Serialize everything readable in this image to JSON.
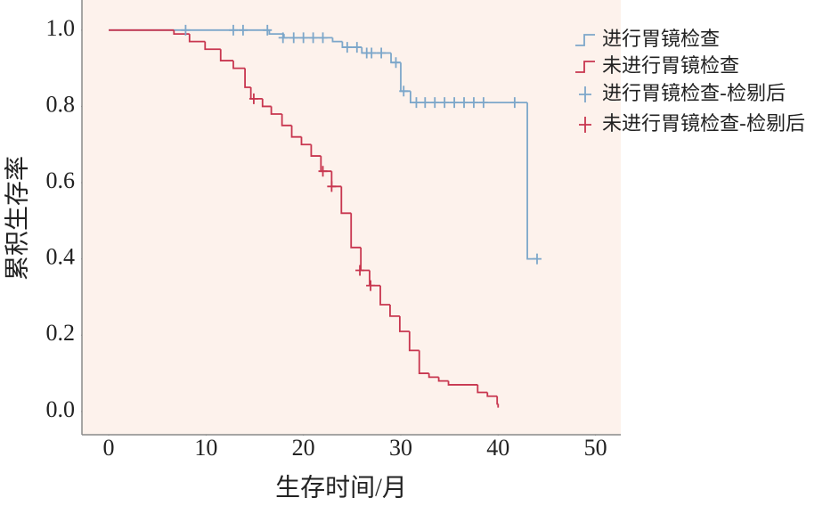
{
  "chart_data": {
    "type": "km",
    "x_label": "生存时间/月",
    "y_label": "累积生存率",
    "xlim": [
      -2.75,
      52.6
    ],
    "ylim": [
      -0.061,
      1.079
    ],
    "xticks": [
      0,
      10,
      20,
      30,
      40,
      50
    ],
    "yticks": [
      {
        "value": 0,
        "label": "0.0"
      },
      0.2,
      0.4,
      0.6,
      0.8,
      {
        "value": 1,
        "label": "1.0"
      }
    ],
    "background": "#fdf2ec",
    "series": [
      {
        "name": "进行胃镜检查",
        "color": "#7da7ca",
        "mark": "step",
        "x": [
          0,
          16.5,
          18,
          23,
          24,
          26,
          29,
          30,
          31,
          43,
          44
        ],
        "values": [
          1.0,
          0.99,
          0.98,
          0.97,
          0.955,
          0.94,
          0.915,
          0.84,
          0.81,
          0.4,
          0.4
        ]
      },
      {
        "name": "未进行胃镜检查",
        "color": "#c8364f",
        "mark": "step",
        "x": [
          0,
          6.7,
          8.3,
          9.9,
          11.5,
          12.8,
          14,
          14.6,
          15.8,
          16.7,
          17.8,
          18.8,
          19.8,
          20.8,
          21.8,
          22.9,
          23.9,
          24.9,
          25.9,
          26.8,
          27.9,
          28.9,
          29.9,
          30.9,
          31.9,
          32.9,
          33.9,
          34.9,
          37.9,
          38.9,
          39.9,
          40
        ],
        "values": [
          1.0,
          0.99,
          0.97,
          0.95,
          0.92,
          0.9,
          0.85,
          0.82,
          0.8,
          0.78,
          0.75,
          0.72,
          0.7,
          0.67,
          0.63,
          0.59,
          0.52,
          0.43,
          0.37,
          0.33,
          0.28,
          0.25,
          0.21,
          0.16,
          0.1,
          0.09,
          0.08,
          0.07,
          0.05,
          0.04,
          0.02,
          0.01
        ]
      },
      {
        "name": "进行胃镜检查-检剔后",
        "color": "#7da7ca",
        "mark": "plus",
        "x": [
          7.9,
          12.8,
          13.8,
          16.3,
          17.9,
          19,
          20,
          21,
          22,
          24.5,
          25.5,
          26.5,
          27,
          28,
          29.5,
          30.3,
          31.6,
          32.5,
          33.5,
          34.5,
          35.5,
          36.5,
          37.5,
          38.5,
          41.7,
          44
        ],
        "values": [
          1.0,
          1.0,
          1.0,
          1.0,
          0.98,
          0.98,
          0.98,
          0.98,
          0.98,
          0.955,
          0.955,
          0.94,
          0.94,
          0.94,
          0.915,
          0.84,
          0.81,
          0.81,
          0.81,
          0.81,
          0.81,
          0.81,
          0.81,
          0.81,
          0.81,
          0.4
        ]
      },
      {
        "name": "未进行胃镜检查-检剔后",
        "color": "#c8364f",
        "mark": "plus",
        "x": [
          14.9,
          22,
          22.9,
          25.8,
          26.9
        ],
        "values": [
          0.82,
          0.63,
          0.59,
          0.37,
          0.33
        ]
      }
    ]
  }
}
